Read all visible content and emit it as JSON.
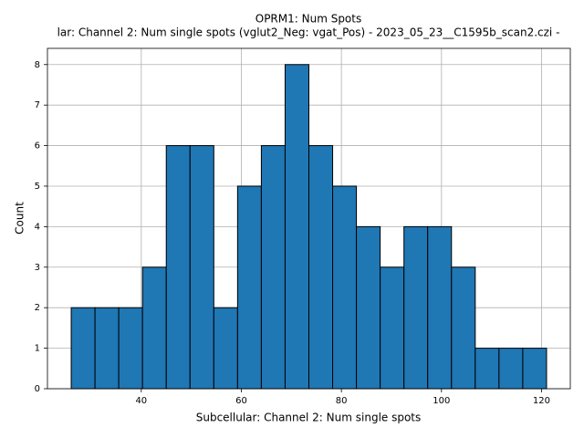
{
  "chart_data": {
    "type": "histogram",
    "title": "OPRM1: Num Spots",
    "subtitle": "lar: Channel 2: Num single spots (vglut2_Neg: vgat_Pos) - 2023_05_23__C1595b_scan2.czi -",
    "x_label": "Subcellular: Channel 2: Num single spots",
    "y_label": "Count",
    "bins": [
      26,
      30.75,
      35.5,
      40.25,
      45,
      49.75,
      54.5,
      59.25,
      64,
      68.75,
      73.5,
      78.25,
      83,
      87.75,
      92.5,
      97.25,
      102,
      106.75,
      111.5,
      116.25,
      121
    ],
    "values": [
      2,
      2,
      2,
      3,
      6,
      6,
      2,
      5,
      6,
      8,
      6,
      5,
      4,
      3,
      4,
      4,
      3,
      1,
      1,
      1
    ],
    "color": "#1f77b4",
    "edge_color": "#000000",
    "xlim": [
      21.25,
      125.75
    ],
    "ylim": [
      0,
      8.4
    ],
    "xticks": [
      40,
      60,
      80,
      100,
      120
    ],
    "yticks": [
      0,
      1,
      2,
      3,
      4,
      5,
      6,
      7,
      8
    ],
    "grid": true
  }
}
